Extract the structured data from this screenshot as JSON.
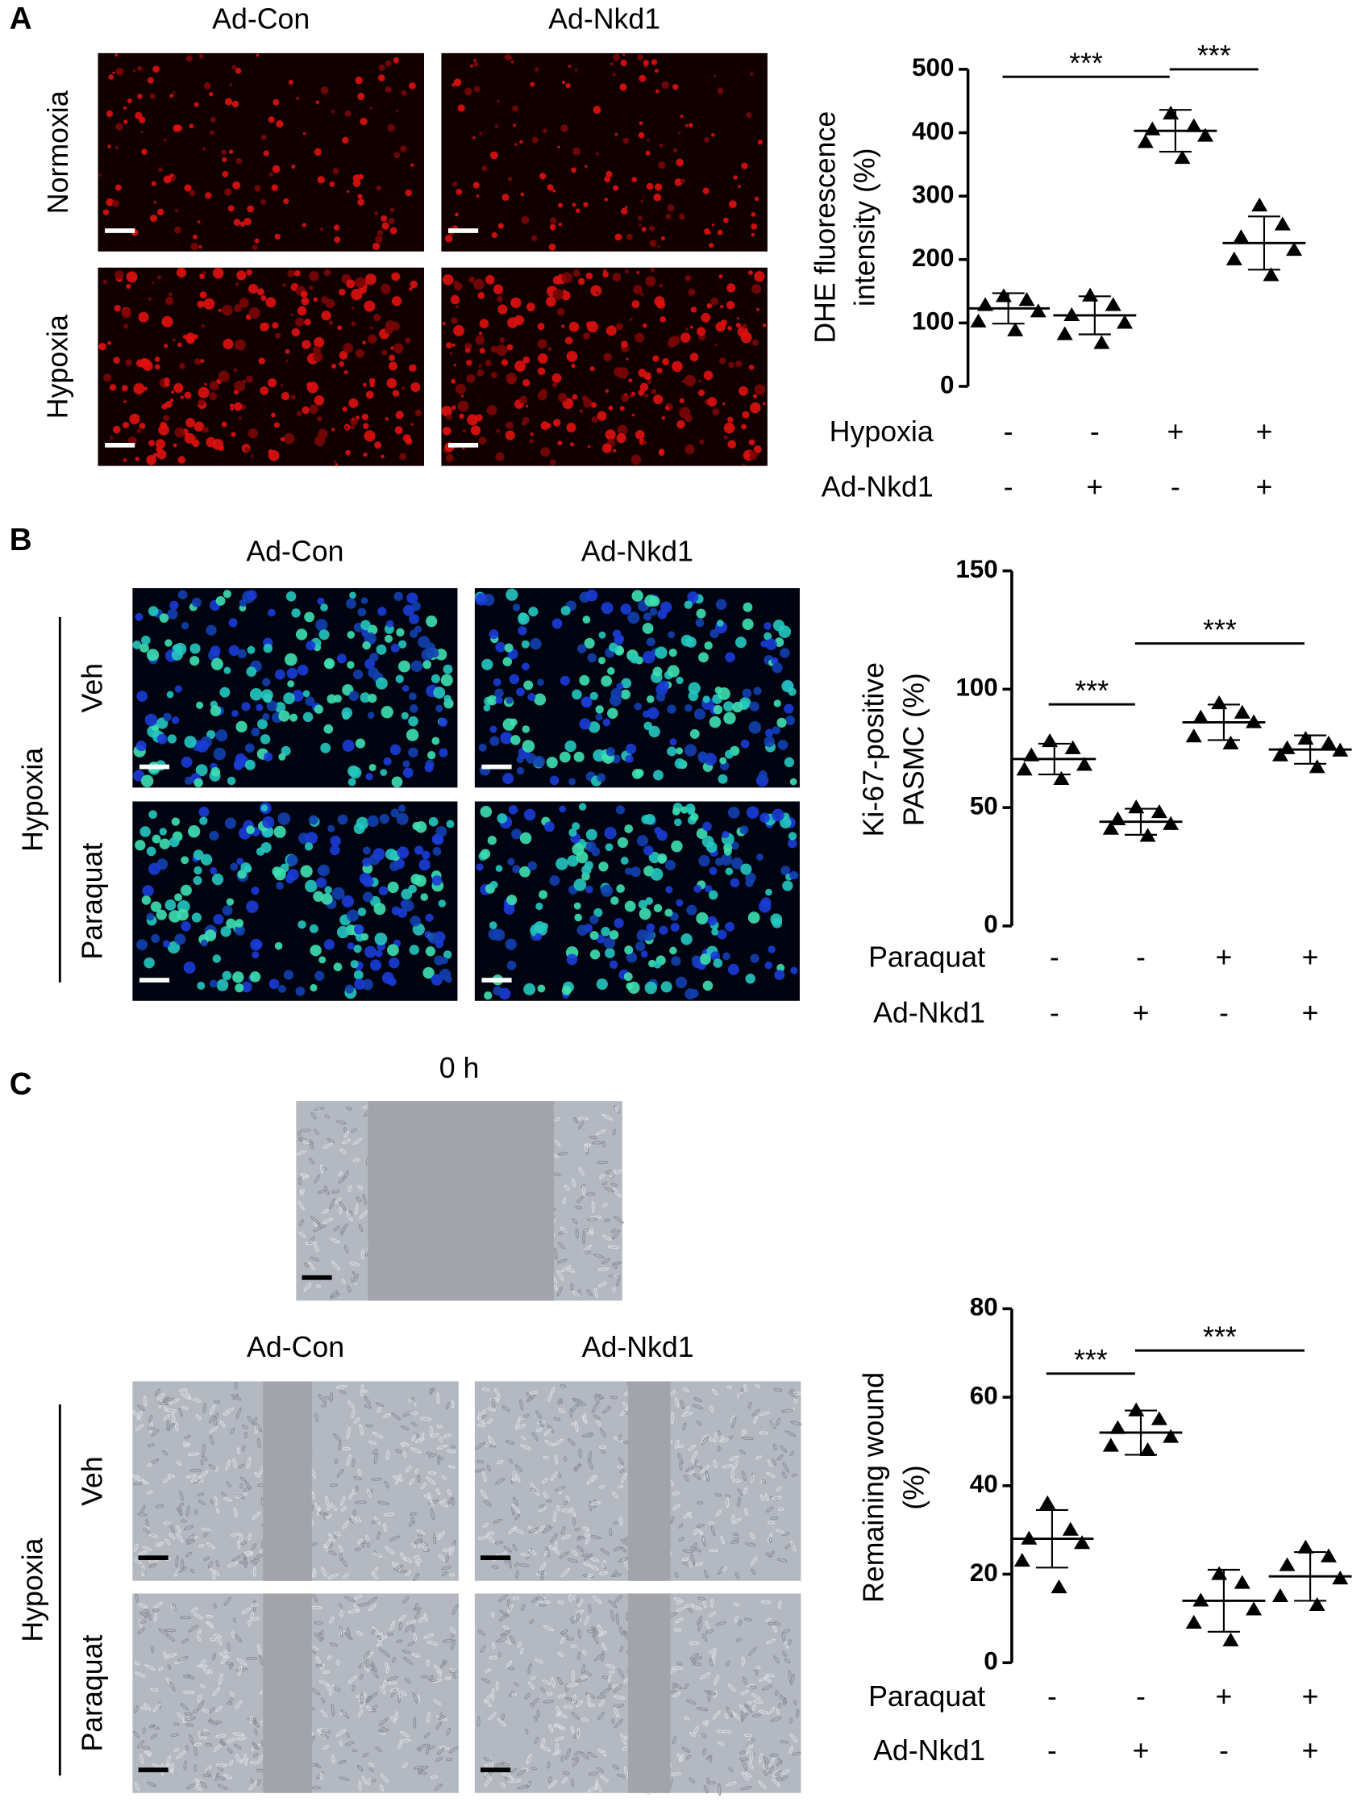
{
  "panels": [
    {
      "label": "A",
      "column_labels": [
        "Ad-Con",
        "Ad-Nkd1"
      ],
      "row_labels": [
        "Normoxia",
        "Hypoxia"
      ]
    },
    {
      "label": "B",
      "group_label": "Hypoxia",
      "column_labels": [
        "Ad-Con",
        "Ad-Nkd1"
      ],
      "row_labels": [
        "Veh",
        "Paraquat"
      ]
    },
    {
      "label": "C",
      "top_label": "0 h",
      "group_label": "Hypoxia",
      "column_labels": [
        "Ad-Con",
        "Ad-Nkd1"
      ],
      "row_labels": [
        "Veh",
        "Paraquat"
      ]
    }
  ],
  "chart_data": [
    {
      "type": "scatter",
      "ylabel": [
        "DHE fluorescence",
        "intensity (%)"
      ],
      "ylim": [
        0,
        500
      ],
      "yticks": [
        0,
        100,
        200,
        300,
        400,
        500
      ],
      "marker_color": "#000000",
      "factors": [
        {
          "name": "Hypoxia",
          "levels": [
            "-",
            "-",
            "+",
            "+"
          ]
        },
        {
          "name": "Ad-Nkd1",
          "levels": [
            "-",
            "+",
            "-",
            "+"
          ]
        }
      ],
      "groups": [
        {
          "points": [
            142,
            136,
            128,
            118,
            102,
            88
          ],
          "mean": 123,
          "sd": 24
        },
        {
          "points": [
            143,
            128,
            112,
            100,
            82,
            68
          ],
          "mean": 112,
          "sd": 30
        },
        {
          "points": [
            430,
            410,
            405,
            395,
            385,
            360
          ],
          "mean": 403,
          "sd": 33
        },
        {
          "points": [
            285,
            255,
            235,
            215,
            200,
            175
          ],
          "mean": 226,
          "sd": 42
        }
      ],
      "comparisons": [
        {
          "groups": [
            0,
            2
          ],
          "label": "***"
        },
        {
          "groups": [
            2,
            3
          ],
          "label": "***"
        }
      ]
    },
    {
      "type": "scatter",
      "ylabel": [
        "Ki-67-positive",
        "PASMC (%)"
      ],
      "ylim": [
        0,
        150
      ],
      "yticks": [
        0,
        50,
        100,
        150
      ],
      "marker_color": "#000000",
      "factors": [
        {
          "name": "Paraquat",
          "levels": [
            "-",
            "-",
            "+",
            "+"
          ]
        },
        {
          "name": "Ad-Nkd1",
          "levels": [
            "-",
            "+",
            "-",
            "+"
          ]
        }
      ],
      "groups": [
        {
          "points": [
            78,
            75,
            72,
            68,
            66,
            62
          ],
          "mean": 70.5,
          "sd": 6.5
        },
        {
          "points": [
            50,
            48,
            45,
            43,
            41,
            38
          ],
          "mean": 44,
          "sd": 5.5
        },
        {
          "points": [
            94,
            90,
            88,
            86,
            80,
            77
          ],
          "mean": 86,
          "sd": 7.5
        },
        {
          "points": [
            79,
            77,
            75,
            74,
            72,
            67
          ],
          "mean": 74.5,
          "sd": 6
        }
      ],
      "comparisons": [
        {
          "groups": [
            0,
            1
          ],
          "label": "***"
        },
        {
          "groups": [
            1,
            3
          ],
          "label": "***"
        }
      ]
    },
    {
      "type": "scatter",
      "ylabel": [
        "Remaining wound",
        "(%)"
      ],
      "ylim": [
        0,
        80
      ],
      "yticks": [
        0,
        20,
        40,
        60,
        80
      ],
      "marker_color": "#000000",
      "factors": [
        {
          "name": "Paraquat",
          "levels": [
            "-",
            "-",
            "+",
            "+"
          ]
        },
        {
          "name": "Ad-Nkd1",
          "levels": [
            "-",
            "+",
            "-",
            "+"
          ]
        }
      ],
      "groups": [
        {
          "points": [
            36,
            30,
            28,
            27,
            23,
            17
          ],
          "mean": 28,
          "sd": 6.5
        },
        {
          "points": [
            57,
            55,
            53,
            51,
            49,
            48
          ],
          "mean": 52,
          "sd": 5
        },
        {
          "points": [
            20,
            18,
            14,
            12,
            9,
            5
          ],
          "mean": 14,
          "sd": 7
        },
        {
          "points": [
            26,
            24,
            22,
            19,
            15,
            13
          ],
          "mean": 19.5,
          "sd": 5.5
        }
      ],
      "comparisons": [
        {
          "groups": [
            0,
            1
          ],
          "label": "***"
        },
        {
          "groups": [
            1,
            3
          ],
          "label": "***"
        }
      ]
    }
  ]
}
